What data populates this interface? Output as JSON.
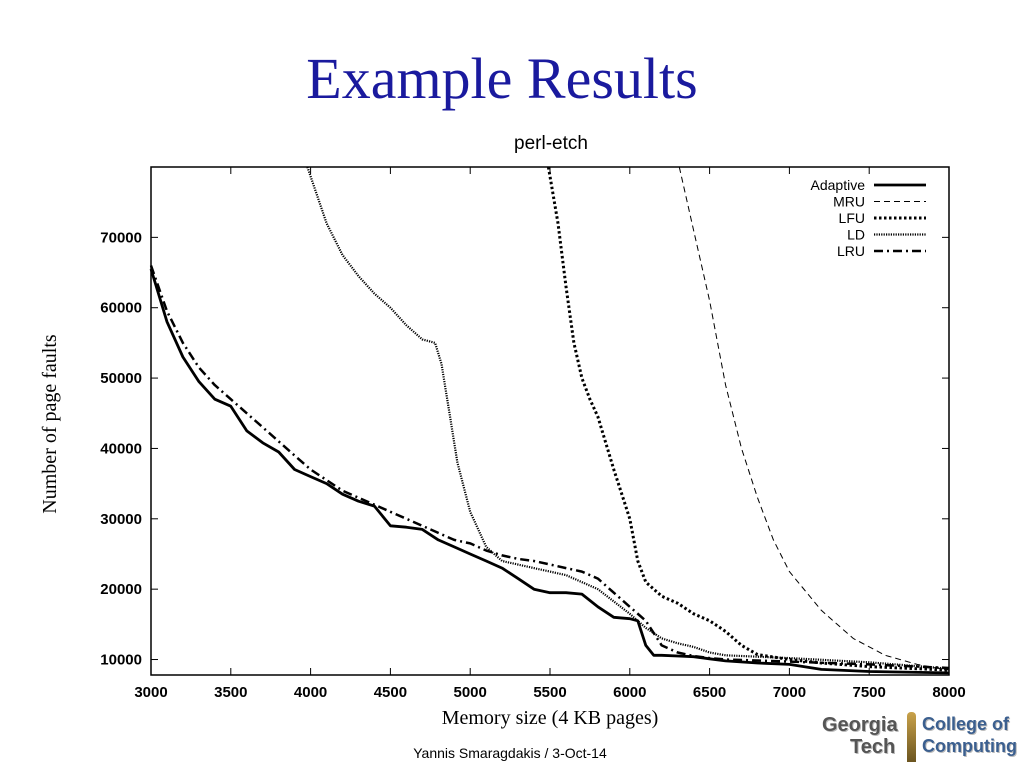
{
  "slide": {
    "title": "Example Results",
    "footer": "Yannis Smaragdakis / 3-Oct-14",
    "logo": {
      "line1": "Georgia",
      "line2": "Tech",
      "line3": "College of",
      "line4": "Computing",
      "accent_color": "#3b5f8f"
    }
  },
  "chart_data": {
    "type": "line",
    "title": "perl-etch",
    "xlabel": "Memory size (4 KB pages)",
    "ylabel": "Number of page faults",
    "xlim": [
      3000,
      8000
    ],
    "ylim": [
      7800,
      80000
    ],
    "xticks": [
      3000,
      3500,
      4000,
      4500,
      5000,
      5500,
      6000,
      6500,
      7000,
      7500,
      8000
    ],
    "yticks": [
      10000,
      20000,
      30000,
      40000,
      50000,
      60000,
      70000
    ],
    "grid": false,
    "legend_position": "top-right",
    "series": [
      {
        "name": "Adaptive",
        "style": "solid",
        "points": [
          [
            3000,
            65500
          ],
          [
            3100,
            58000
          ],
          [
            3200,
            53000
          ],
          [
            3300,
            49500
          ],
          [
            3400,
            47000
          ],
          [
            3500,
            46000
          ],
          [
            3600,
            42500
          ],
          [
            3700,
            40800
          ],
          [
            3800,
            39500
          ],
          [
            3900,
            37000
          ],
          [
            4000,
            36000
          ],
          [
            4100,
            35000
          ],
          [
            4200,
            33500
          ],
          [
            4300,
            32500
          ],
          [
            4400,
            31800
          ],
          [
            4500,
            29000
          ],
          [
            4600,
            28800
          ],
          [
            4700,
            28500
          ],
          [
            4800,
            27000
          ],
          [
            4900,
            26000
          ],
          [
            5000,
            25000
          ],
          [
            5100,
            24000
          ],
          [
            5200,
            23000
          ],
          [
            5300,
            21500
          ],
          [
            5400,
            20000
          ],
          [
            5500,
            19500
          ],
          [
            5600,
            19500
          ],
          [
            5700,
            19300
          ],
          [
            5800,
            17500
          ],
          [
            5900,
            16000
          ],
          [
            6000,
            15800
          ],
          [
            6050,
            15500
          ],
          [
            6100,
            12000
          ],
          [
            6150,
            10600
          ],
          [
            6200,
            10600
          ],
          [
            6300,
            10500
          ],
          [
            6400,
            10400
          ],
          [
            6500,
            10100
          ],
          [
            6600,
            9800
          ],
          [
            6800,
            9500
          ],
          [
            7000,
            9300
          ],
          [
            7200,
            8600
          ],
          [
            7500,
            8300
          ],
          [
            8000,
            8100
          ]
        ]
      },
      {
        "name": "MRU",
        "style": "dashed",
        "points": [
          [
            6310,
            80000
          ],
          [
            6400,
            71000
          ],
          [
            6500,
            61000
          ],
          [
            6600,
            49000
          ],
          [
            6700,
            40000
          ],
          [
            6800,
            33000
          ],
          [
            6900,
            27000
          ],
          [
            7000,
            22500
          ],
          [
            7200,
            17000
          ],
          [
            7400,
            13000
          ],
          [
            7600,
            10600
          ],
          [
            7800,
            9300
          ],
          [
            8000,
            8500
          ]
        ]
      },
      {
        "name": "LFU",
        "style": "dotted-heavy",
        "points": [
          [
            5490,
            80000
          ],
          [
            5550,
            72000
          ],
          [
            5600,
            63000
          ],
          [
            5650,
            55000
          ],
          [
            5700,
            50000
          ],
          [
            5750,
            47000
          ],
          [
            5800,
            44500
          ],
          [
            5900,
            37000
          ],
          [
            6000,
            30000
          ],
          [
            6050,
            24000
          ],
          [
            6100,
            21000
          ],
          [
            6200,
            19000
          ],
          [
            6300,
            18000
          ],
          [
            6400,
            16500
          ],
          [
            6500,
            15500
          ],
          [
            6600,
            14000
          ],
          [
            6700,
            12000
          ],
          [
            6800,
            10700
          ],
          [
            7000,
            10000
          ],
          [
            7200,
            9500
          ],
          [
            7500,
            9000
          ],
          [
            8000,
            8500
          ]
        ]
      },
      {
        "name": "LD",
        "style": "dotted-fine",
        "points": [
          [
            3980,
            80000
          ],
          [
            4100,
            72000
          ],
          [
            4200,
            67500
          ],
          [
            4300,
            64500
          ],
          [
            4400,
            62000
          ],
          [
            4500,
            60000
          ],
          [
            4600,
            57500
          ],
          [
            4700,
            55500
          ],
          [
            4780,
            55000
          ],
          [
            4820,
            52000
          ],
          [
            4870,
            45000
          ],
          [
            4920,
            38000
          ],
          [
            5000,
            31000
          ],
          [
            5100,
            26000
          ],
          [
            5200,
            24000
          ],
          [
            5400,
            23000
          ],
          [
            5600,
            22000
          ],
          [
            5800,
            20000
          ],
          [
            6000,
            16500
          ],
          [
            6100,
            14500
          ],
          [
            6200,
            13000
          ],
          [
            6300,
            12300
          ],
          [
            6400,
            11800
          ],
          [
            6500,
            11000
          ],
          [
            6600,
            10600
          ],
          [
            7000,
            10200
          ],
          [
            7500,
            9600
          ],
          [
            8000,
            8700
          ]
        ]
      },
      {
        "name": "LRU",
        "style": "dash-dot",
        "points": [
          [
            3000,
            66000
          ],
          [
            3100,
            59500
          ],
          [
            3200,
            55000
          ],
          [
            3300,
            51500
          ],
          [
            3400,
            49000
          ],
          [
            3500,
            47000
          ],
          [
            3600,
            45000
          ],
          [
            3700,
            43000
          ],
          [
            3800,
            41000
          ],
          [
            3900,
            39000
          ],
          [
            4000,
            37000
          ],
          [
            4100,
            35500
          ],
          [
            4200,
            34000
          ],
          [
            4300,
            33000
          ],
          [
            4400,
            32000
          ],
          [
            4500,
            31000
          ],
          [
            4600,
            30000
          ],
          [
            4700,
            29000
          ],
          [
            4800,
            28000
          ],
          [
            4900,
            27000
          ],
          [
            5000,
            26500
          ],
          [
            5100,
            25500
          ],
          [
            5200,
            24800
          ],
          [
            5300,
            24300
          ],
          [
            5400,
            24000
          ],
          [
            5500,
            23500
          ],
          [
            5600,
            23000
          ],
          [
            5700,
            22500
          ],
          [
            5800,
            21500
          ],
          [
            5900,
            19500
          ],
          [
            6000,
            17500
          ],
          [
            6100,
            15500
          ],
          [
            6200,
            12000
          ],
          [
            6300,
            11000
          ],
          [
            6400,
            10500
          ],
          [
            6500,
            10200
          ],
          [
            6600,
            10000
          ],
          [
            7000,
            9700
          ],
          [
            7500,
            9300
          ],
          [
            8000,
            8800
          ]
        ]
      }
    ]
  }
}
